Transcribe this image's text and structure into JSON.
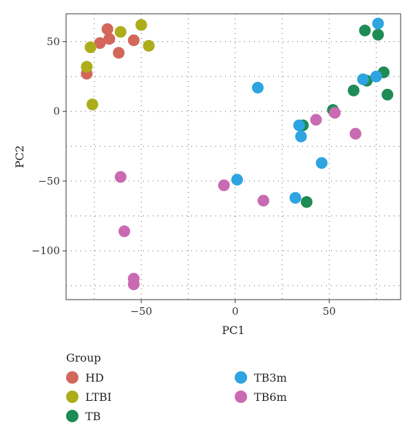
{
  "chart_data": {
    "type": "scatter",
    "xlabel": "PC1",
    "ylabel": "PC2",
    "xlim": [
      -90,
      88
    ],
    "ylim": [
      -135,
      70
    ],
    "x_ticks": [
      -50,
      0,
      50
    ],
    "x_tick_labels": [
      "−50",
      "0",
      "50"
    ],
    "y_ticks": [
      -100,
      -50,
      0,
      50
    ],
    "y_tick_labels": [
      "−100",
      "−50",
      "0",
      "50"
    ],
    "grid": "dotted",
    "legend_title": "Group",
    "legend_position": "bottom",
    "series": [
      {
        "name": "HD",
        "color": "#D2675A",
        "points": [
          {
            "x": -68,
            "y": 59
          },
          {
            "x": -72,
            "y": 49
          },
          {
            "x": -67,
            "y": 52
          },
          {
            "x": -62,
            "y": 42
          },
          {
            "x": -54,
            "y": 51
          },
          {
            "x": -79,
            "y": 27
          }
        ]
      },
      {
        "name": "LTBI",
        "color": "#ADAD1C",
        "points": [
          {
            "x": -77,
            "y": 46
          },
          {
            "x": -79,
            "y": 32
          },
          {
            "x": -76,
            "y": 5
          },
          {
            "x": -61,
            "y": 57
          },
          {
            "x": -50,
            "y": 62
          },
          {
            "x": -46,
            "y": 47
          }
        ]
      },
      {
        "name": "TB",
        "color": "#1E8C55",
        "points": [
          {
            "x": 69,
            "y": 58
          },
          {
            "x": 76,
            "y": 55
          },
          {
            "x": 79,
            "y": 28
          },
          {
            "x": 81,
            "y": 12
          },
          {
            "x": 70,
            "y": 22
          },
          {
            "x": 63,
            "y": 15
          },
          {
            "x": 52,
            "y": 1
          },
          {
            "x": 36,
            "y": -10
          },
          {
            "x": 38,
            "y": -65
          }
        ]
      },
      {
        "name": "TB3m",
        "color": "#2EA4E0",
        "points": [
          {
            "x": 76,
            "y": 63
          },
          {
            "x": 68,
            "y": 23
          },
          {
            "x": 75,
            "y": 25
          },
          {
            "x": 12,
            "y": 17
          },
          {
            "x": 34,
            "y": -10
          },
          {
            "x": 35,
            "y": -18
          },
          {
            "x": 46,
            "y": -37
          },
          {
            "x": 1,
            "y": -49
          },
          {
            "x": 32,
            "y": -62
          }
        ]
      },
      {
        "name": "TB6m",
        "color": "#C96AB2",
        "points": [
          {
            "x": 53,
            "y": -1
          },
          {
            "x": 43,
            "y": -6
          },
          {
            "x": 64,
            "y": -16
          },
          {
            "x": -61,
            "y": -47
          },
          {
            "x": -6,
            "y": -53
          },
          {
            "x": 15,
            "y": -64
          },
          {
            "x": -59,
            "y": -86
          },
          {
            "x": -54,
            "y": -120
          },
          {
            "x": -54,
            "y": -124
          }
        ]
      }
    ]
  }
}
